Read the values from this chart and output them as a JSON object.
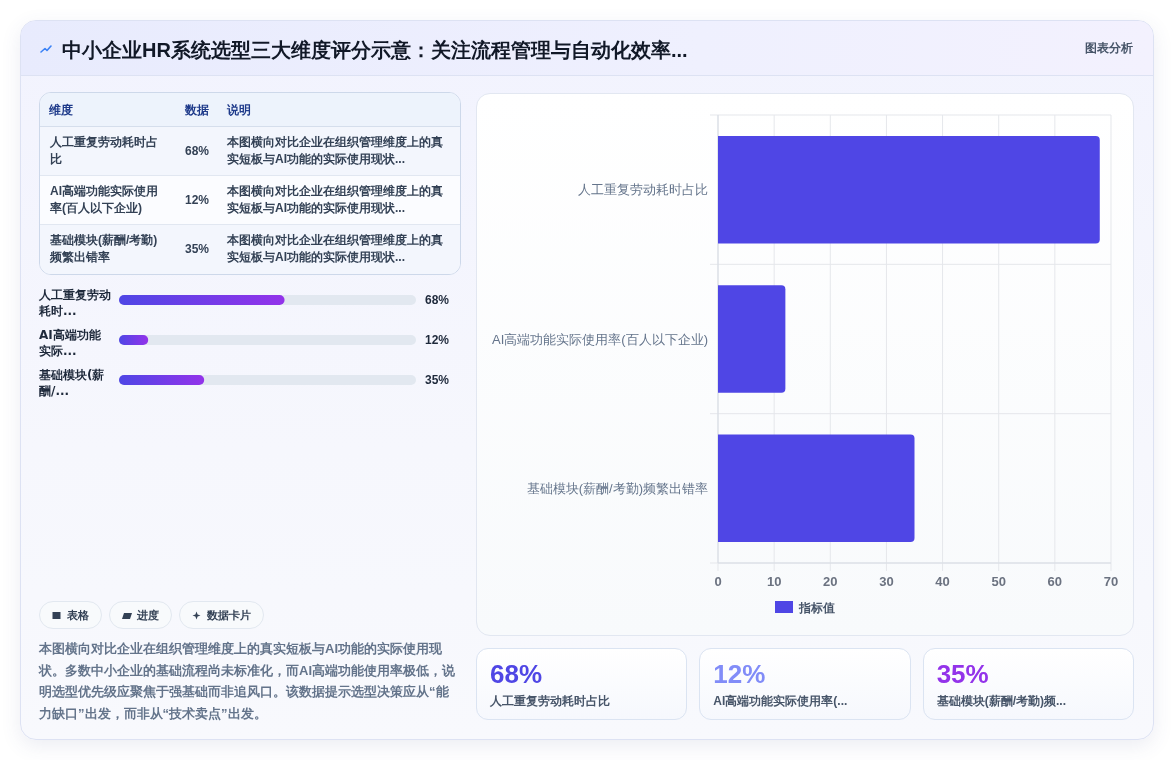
{
  "chart_data": [
    {
      "type": "bar",
      "orientation": "horizontal",
      "annotations": [
        "图表分析"
      ],
      "categories": [
        "人工重复劳动耗时占比",
        "AI高端功能实际使用率(百人以下企业)",
        "基础模块(薪酬/考勤)频繁出错率"
      ],
      "series": [
        {
          "name": "指标值",
          "color": "#4f46e5",
          "values": [
            68,
            12,
            35
          ]
        }
      ],
      "xlim": [
        0,
        70
      ],
      "xticks": [
        0,
        10,
        20,
        30,
        40,
        50,
        60,
        70
      ],
      "grid": true,
      "legend": "bottom"
    },
    {
      "type": "other",
      "title": "中小企业HR系统选型三大维度评分示意：关注流程管理与自动化效率...",
      "categories": [
        "人工重复劳动耗时占比",
        "AI高端功能实际使用率(百人以下企业)",
        "基础模块(薪酬/考勤)频繁出错率"
      ],
      "value_labels": [
        "68%",
        "12%",
        "35%"
      ],
      "annotations": [
        "维度",
        "数据",
        "说明",
        "本图横向对比企业在组织管理维度上的真实短板与AI功能的实际使用现状...",
        "本图横向对比企业在组织管理维度上的真实短板与AI功能的实际使用现状...",
        "本图横向对比企业在组织管理维度上的真实短板与AI功能的实际使用现状..."
      ]
    },
    {
      "type": "bar",
      "orientation": "horizontal",
      "categories": [
        "人工重复劳动耗时...",
        "AI高端功能实际...",
        "基础模块(薪酬/..."
      ],
      "values": [
        68,
        12,
        35
      ],
      "value_labels": [
        "68%",
        "12%",
        "35%"
      ],
      "color": "#4f46e5",
      "xlim": [
        0,
        122
      ]
    },
    {
      "type": "other",
      "categories": [
        "人工重复劳动耗时占比",
        "AI高端功能实际使用率(...",
        "基础模块(薪酬/考勤)频..."
      ],
      "value_labels": [
        "68%",
        "12%",
        "35%"
      ]
    },
    {
      "type": "other",
      "annotations": [
        "表格",
        "进度",
        "数据卡片",
        "本图横向对比企业在组织管理维度上的真实短板与AI功能的实际使用现状。多数中小企业的基础流程尚未标准化，而AI高端功能使用率极低，说明选型优先级应聚焦于强基础而非追风口。该数据提示选型决策应从“能力缺口”出发，而非从“技术卖点”出发。"
      ]
    }
  ]
}
